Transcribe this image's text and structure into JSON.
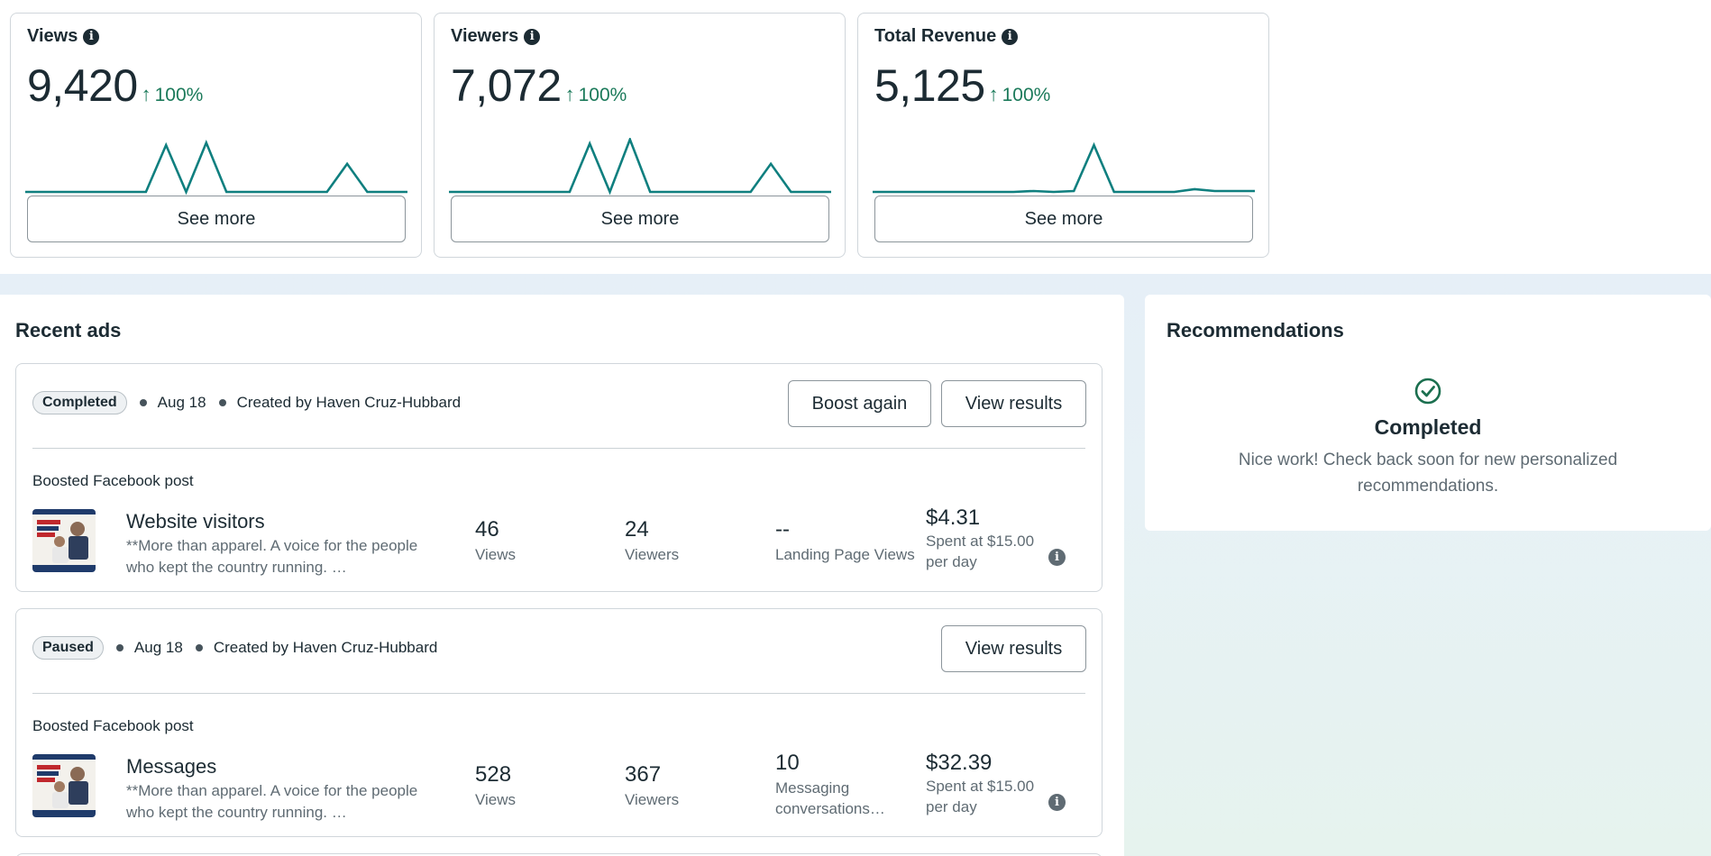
{
  "metrics": [
    {
      "title": "Views",
      "value": "9,420",
      "change": "100%",
      "see_more": "See more",
      "trend": [
        0,
        0,
        0,
        0,
        0,
        0,
        0,
        1,
        0,
        1.05,
        0,
        0,
        0,
        0,
        0,
        0,
        0.6,
        0,
        0,
        0
      ]
    },
    {
      "title": "Viewers",
      "value": "7,072",
      "change": "100%",
      "see_more": "See more",
      "trend": [
        0,
        0,
        0,
        0,
        0,
        0,
        0,
        1.03,
        0,
        1.12,
        0,
        0,
        0,
        0,
        0,
        0,
        0.6,
        0,
        0,
        0
      ]
    },
    {
      "title": "Total Revenue",
      "value": "5,125",
      "change": "100%",
      "see_more": "See more",
      "trend": [
        0,
        0,
        0,
        0,
        0,
        0,
        0,
        0,
        0.02,
        0,
        0.02,
        1,
        0,
        0,
        0,
        0,
        0.06,
        0.02,
        0.02,
        0.02
      ]
    }
  ],
  "recent_ads": {
    "title": "Recent ads",
    "ads": [
      {
        "status": "Completed",
        "date": "Aug 18",
        "created_by": "Created by Haven Cruz-Hubbard",
        "buttons": [
          "Boost again",
          "View results"
        ],
        "post_type": "Boosted Facebook post",
        "name": "Website visitors",
        "description": "**More than apparel. A voice for the people who kept the country running. …",
        "stats": [
          {
            "value": "46",
            "label": "Views"
          },
          {
            "value": "24",
            "label": "Viewers"
          },
          {
            "value": "--",
            "label": "Landing Page Views"
          }
        ],
        "spend": {
          "value": "$4.31",
          "label": "Spent at $15.00 per day"
        }
      },
      {
        "status": "Paused",
        "date": "Aug 18",
        "created_by": "Created by Haven Cruz-Hubbard",
        "buttons": [
          "View results"
        ],
        "post_type": "Boosted Facebook post",
        "name": "Messages",
        "description": "**More than apparel. A voice for the people who kept the country running. …",
        "stats": [
          {
            "value": "528",
            "label": "Views"
          },
          {
            "value": "367",
            "label": "Viewers"
          },
          {
            "value": "10",
            "label": "Messaging conversations…"
          }
        ],
        "spend": {
          "value": "$32.39",
          "label": "Spent at $15.00 per day"
        }
      }
    ]
  },
  "thumbnail_text": "WEAR YOUR VALUES.",
  "recommendations": {
    "title": "Recommendations",
    "status": "Completed",
    "message": "Nice work! Check back soon for new personalized recommendations."
  },
  "colors": {
    "trend_line": "#0f7f7f",
    "positive": "#1b7a5a",
    "check": "#1b6f4f"
  },
  "icons": {
    "info": "info-icon",
    "trend_up": "arrow-up-icon",
    "completed": "check-circle-icon"
  }
}
